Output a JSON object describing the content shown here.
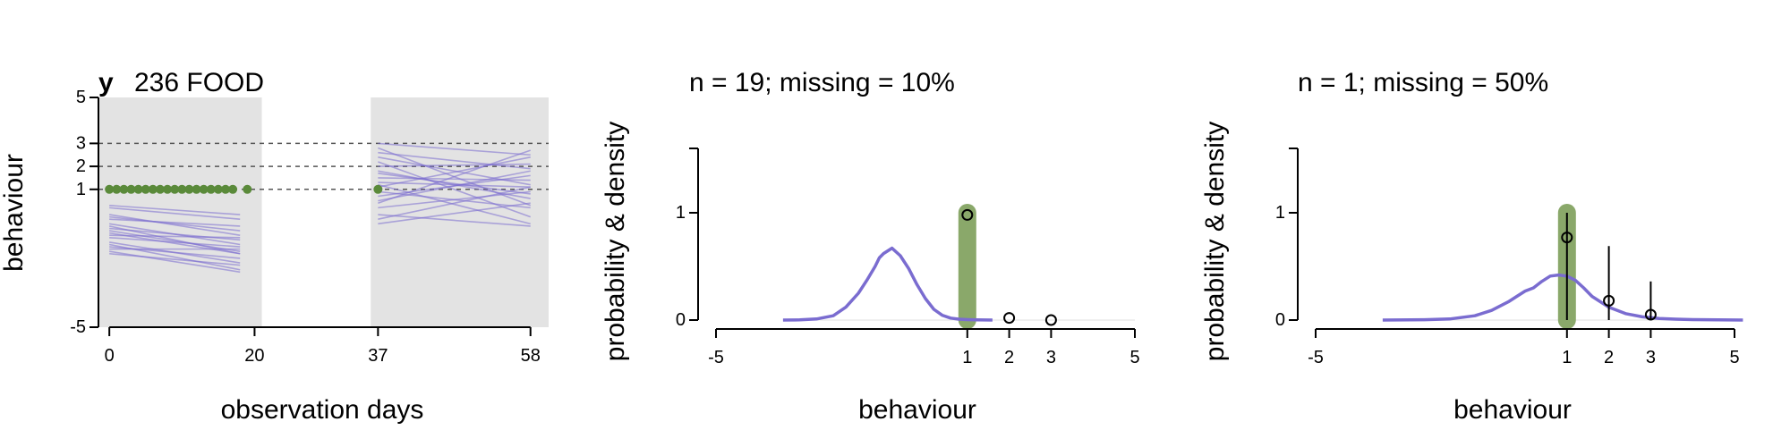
{
  "chart_data": [
    {
      "type": "line",
      "panel_label": "y",
      "title": "236 FOOD",
      "xlabel": "observation days",
      "ylabel": "behaviour",
      "x_ticks": [
        0,
        20,
        37,
        58
      ],
      "y_ticks": [
        -5,
        1,
        2,
        3,
        5
      ],
      "xlim": [
        -1.5,
        60.5
      ],
      "ylim": [
        -5,
        5
      ],
      "shaded_x_ranges": [
        [
          -1.5,
          21
        ],
        [
          36,
          60.5
        ]
      ],
      "reference_lines_y": [
        1,
        2,
        3
      ],
      "observed_points": {
        "color": "#5a8a3a",
        "x": [
          0,
          1,
          2,
          3,
          4,
          5,
          6,
          7,
          8,
          9,
          10,
          11,
          12,
          13,
          14,
          15,
          16,
          17,
          19,
          37
        ],
        "y": [
          1,
          1,
          1,
          1,
          1,
          1,
          1,
          1,
          1,
          1,
          1,
          1,
          1,
          1,
          1,
          1,
          1,
          1,
          1,
          1
        ]
      },
      "predicted_lines": {
        "color": "#7a6cd0",
        "segment_1": {
          "x": [
            0,
            18
          ],
          "lines": [
            [
              0.2,
              -0.3
            ],
            [
              -0.5,
              -1.4
            ],
            [
              -0.9,
              -1.8
            ],
            [
              -1.3,
              -2.2
            ],
            [
              -1.7,
              -2.6
            ],
            [
              -0.2,
              -0.8
            ],
            [
              -0.7,
              -1.2
            ],
            [
              -1.1,
              -1.5
            ],
            [
              -1.5,
              -2.0
            ],
            [
              0.3,
              -0.1
            ],
            [
              -0.3,
              -0.6
            ],
            [
              -1.0,
              -1.1
            ],
            [
              -1.8,
              -2.3
            ],
            [
              -0.6,
              -1.8
            ],
            [
              -1.4,
              -2.5
            ],
            [
              -0.1,
              -1.0
            ],
            [
              -0.8,
              -1.7
            ],
            [
              -1.6,
              -1.6
            ]
          ]
        },
        "segment_2": {
          "x": [
            37,
            58
          ],
          "lines": [
            [
              3.0,
              2.5
            ],
            [
              2.4,
              1.2
            ],
            [
              1.8,
              0.6
            ],
            [
              0.5,
              1.8
            ],
            [
              -0.3,
              1.1
            ],
            [
              1.2,
              -0.5
            ],
            [
              2.0,
              2.1
            ],
            [
              1.5,
              1.4
            ],
            [
              0.9,
              0.2
            ],
            [
              0.2,
              0.9
            ],
            [
              2.6,
              1.9
            ],
            [
              1.1,
              2.4
            ],
            [
              -0.5,
              0.4
            ],
            [
              1.7,
              0.8
            ],
            [
              0.7,
              1.6
            ],
            [
              2.2,
              -0.2
            ],
            [
              1.3,
              1.1
            ],
            [
              -0.1,
              -0.6
            ],
            [
              2.8,
              0.3
            ],
            [
              0.4,
              2.7
            ]
          ]
        }
      }
    },
    {
      "type": "line",
      "title": "n = 19; missing = 10%",
      "xlabel": "behaviour",
      "ylabel": "probability & density",
      "x_ticks": [
        -5,
        1,
        2,
        3,
        5
      ],
      "y_ticks": [
        0,
        1
      ],
      "xlim": [
        -5,
        5
      ],
      "ylim": [
        0,
        1.6
      ],
      "highlight": {
        "color": "#8aa86a",
        "x": 1,
        "y_range": [
          0,
          1.0
        ]
      },
      "density": {
        "color": "#7a6cd0",
        "x": [
          -3.4,
          -3.0,
          -2.6,
          -2.2,
          -1.9,
          -1.6,
          -1.4,
          -1.2,
          -1.1,
          -1.0,
          -0.8,
          -0.6,
          -0.4,
          -0.2,
          0.0,
          0.2,
          0.4,
          0.6,
          0.8,
          1.0,
          1.2,
          1.4,
          1.6
        ],
        "y": [
          0.0,
          0.002,
          0.01,
          0.04,
          0.12,
          0.25,
          0.37,
          0.5,
          0.58,
          0.62,
          0.67,
          0.6,
          0.48,
          0.33,
          0.2,
          0.1,
          0.045,
          0.018,
          0.008,
          0.004,
          0.002,
          0.001,
          0.0
        ]
      },
      "points": {
        "x": [
          1,
          2,
          3
        ],
        "y": [
          0.98,
          0.02,
          0.0
        ]
      },
      "error_bars": []
    },
    {
      "type": "line",
      "title": "n = 1; missing = 50%",
      "xlabel": "behaviour",
      "ylabel": "probability & density",
      "x_ticks": [
        -5,
        1,
        2,
        3,
        5
      ],
      "y_ticks": [
        0,
        1
      ],
      "xlim": [
        -5,
        5
      ],
      "ylim": [
        0,
        1.6
      ],
      "highlight": {
        "color": "#8aa86a",
        "x": 1,
        "y_range": [
          0,
          1.0
        ]
      },
      "density": {
        "color": "#7a6cd0",
        "x": [
          -3.4,
          -2.4,
          -1.8,
          -1.2,
          -0.8,
          -0.4,
          -0.2,
          0.0,
          0.2,
          0.4,
          0.6,
          0.8,
          1.0,
          1.2,
          1.4,
          1.6,
          2.0,
          2.4,
          2.8,
          3.2,
          3.6,
          4.0,
          4.6,
          5.2
        ],
        "y": [
          0.0,
          0.003,
          0.01,
          0.04,
          0.09,
          0.17,
          0.22,
          0.27,
          0.3,
          0.36,
          0.41,
          0.42,
          0.41,
          0.37,
          0.3,
          0.22,
          0.12,
          0.06,
          0.03,
          0.015,
          0.008,
          0.004,
          0.002,
          0.0
        ]
      },
      "points": {
        "x": [
          1,
          2,
          3
        ],
        "y": [
          0.77,
          0.18,
          0.05
        ]
      },
      "error_bars": [
        {
          "x": 1,
          "low": 0.0,
          "high": 1.0
        },
        {
          "x": 2,
          "low": 0.0,
          "high": 0.69
        },
        {
          "x": 3,
          "low": 0.0,
          "high": 0.36
        }
      ]
    }
  ]
}
